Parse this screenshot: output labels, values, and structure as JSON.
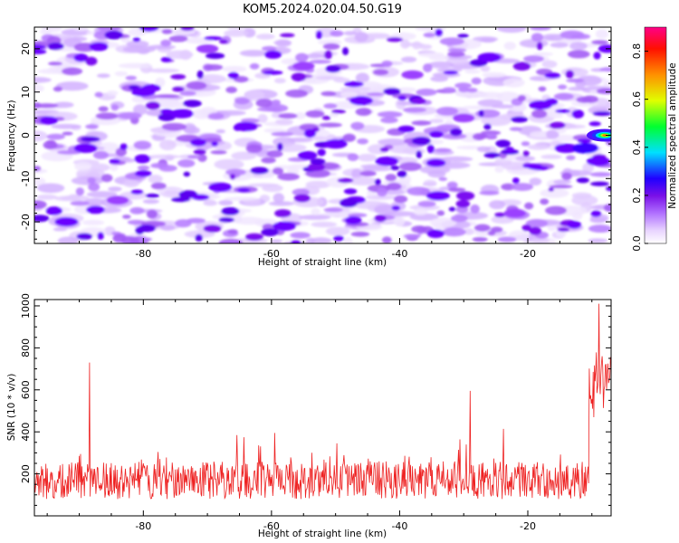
{
  "title": "KOM5.2024.020.04.50.G19",
  "chart_data": [
    {
      "type": "heatmap",
      "xlabel": "Height of straight line (km)",
      "ylabel": "Frequency (Hz)",
      "xlim": [
        -97,
        -7
      ],
      "ylim": [
        -25,
        25
      ],
      "xticks": [
        -80,
        -60,
        -40,
        -20
      ],
      "yticks": [
        -20,
        -10,
        0,
        10,
        20
      ],
      "colorbar": {
        "label": "Normalized spectral amplitude",
        "range": [
          0.0,
          0.9
        ],
        "ticks": [
          0.0,
          0.2,
          0.4,
          0.6,
          0.8
        ],
        "colors": [
          "#ffffff",
          "#d9b3ff",
          "#8a2be2",
          "#0000ff",
          "#00ffff",
          "#00ff00",
          "#ffff00",
          "#ff8000",
          "#ff0000",
          "#ff0080"
        ]
      },
      "peak": {
        "x": -8,
        "y": 0,
        "value": 0.9
      },
      "blobs": [
        {
          "x": -92,
          "y": -20,
          "v": 0.3
        },
        {
          "x": -89,
          "y": -3,
          "v": 0.3
        },
        {
          "x": -84,
          "y": -15,
          "v": 0.22
        },
        {
          "x": -80,
          "y": 10,
          "v": 0.3
        },
        {
          "x": -74,
          "y": 5,
          "v": 0.3
        },
        {
          "x": -70,
          "y": 20,
          "v": 0.22
        },
        {
          "x": -68,
          "y": -12,
          "v": 0.3
        },
        {
          "x": -64,
          "y": 2,
          "v": 0.3
        },
        {
          "x": -58,
          "y": -21,
          "v": 0.3
        },
        {
          "x": -55,
          "y": 16,
          "v": 0.22
        },
        {
          "x": -50,
          "y": -2,
          "v": 0.3
        },
        {
          "x": -46,
          "y": 8,
          "v": 0.3
        },
        {
          "x": -42,
          "y": -6,
          "v": 0.3
        },
        {
          "x": -38,
          "y": 14,
          "v": 0.22
        },
        {
          "x": -34,
          "y": -14,
          "v": 0.3
        },
        {
          "x": -30,
          "y": 4,
          "v": 0.22
        },
        {
          "x": -26,
          "y": 18,
          "v": 0.3
        },
        {
          "x": -22,
          "y": -18,
          "v": 0.22
        },
        {
          "x": -18,
          "y": 7,
          "v": 0.3
        },
        {
          "x": -14,
          "y": -3,
          "v": 0.3
        },
        {
          "x": -11,
          "y": -3,
          "v": 0.45
        },
        {
          "x": -9,
          "y": -6,
          "v": 0.3
        }
      ]
    },
    {
      "type": "line",
      "xlabel": "Height of straight line (km)",
      "ylabel": "SNR (10 * v/v)",
      "xlim": [
        -97,
        -7
      ],
      "ylim": [
        0,
        1030
      ],
      "xticks": [
        -80,
        -60,
        -40,
        -20
      ],
      "yticks": [
        200,
        400,
        600,
        800,
        1000
      ],
      "color": "#ee2222",
      "features": [
        {
          "x": -88.4,
          "y": 730
        },
        {
          "x": -29.0,
          "y": 595
        },
        {
          "x": -8.9,
          "y": 1010
        }
      ],
      "baseline": {
        "from": -97,
        "to": -10.5,
        "mean": 170,
        "spread": 90
      },
      "tail": {
        "from": -10.5,
        "to": -7,
        "mean": 700,
        "spread": 160
      }
    }
  ]
}
